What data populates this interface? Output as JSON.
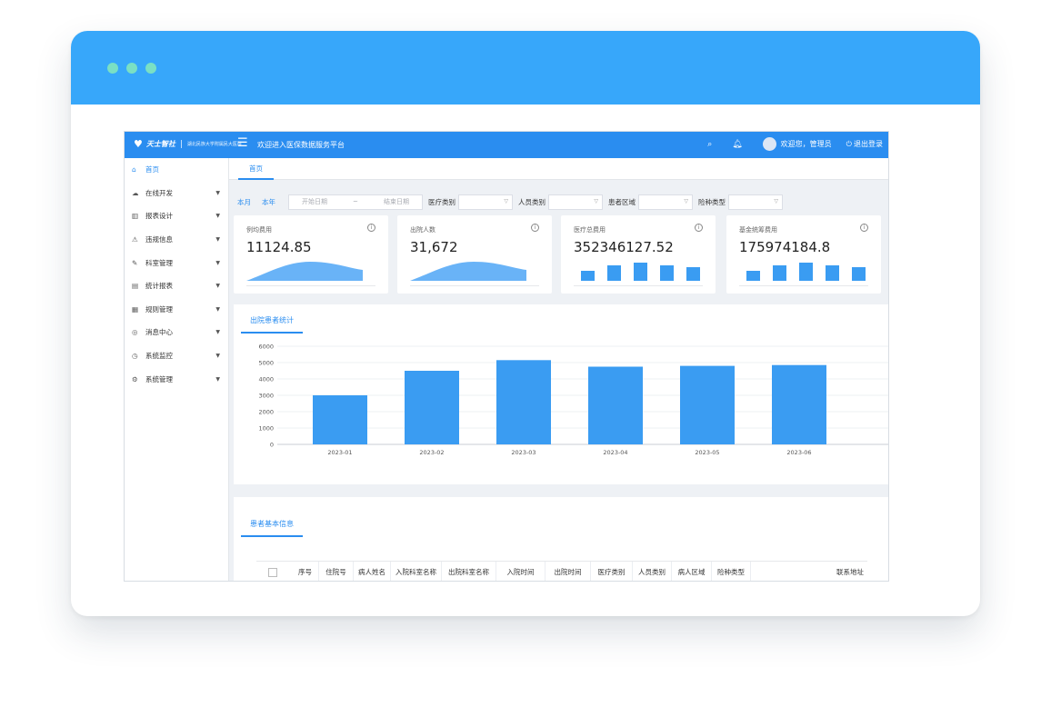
{
  "window": {
    "dots": [
      "close",
      "minimize",
      "maximize"
    ]
  },
  "header": {
    "logo_name": "天士智社",
    "logo_subtitle": "湖北民族大学附属民大医院",
    "menu_icon": "hamburger-icon",
    "title": "欢迎进入医保数据服务平台",
    "welcome": "欢迎您，管理员",
    "logout": "退出登录"
  },
  "sidebar": {
    "items": [
      {
        "label": "首页",
        "icon": "home-icon",
        "glyph": "⌂",
        "active": true,
        "has_arrow": false
      },
      {
        "label": "在线开发",
        "icon": "cloud-icon",
        "glyph": "☁",
        "active": false,
        "has_arrow": true
      },
      {
        "label": "报表设计",
        "icon": "bar-chart-icon",
        "glyph": "▥",
        "active": false,
        "has_arrow": true
      },
      {
        "label": "违规信息",
        "icon": "alert-icon",
        "glyph": "⚠",
        "active": false,
        "has_arrow": true
      },
      {
        "label": "科室管理",
        "icon": "edit-icon",
        "glyph": "✎",
        "active": false,
        "has_arrow": true
      },
      {
        "label": "统计报表",
        "icon": "stats-icon",
        "glyph": "▤",
        "active": false,
        "has_arrow": true
      },
      {
        "label": "规则管理",
        "icon": "rules-icon",
        "glyph": "▦",
        "active": false,
        "has_arrow": true
      },
      {
        "label": "消息中心",
        "icon": "message-icon",
        "glyph": "◎",
        "active": false,
        "has_arrow": true
      },
      {
        "label": "系统监控",
        "icon": "monitor-icon",
        "glyph": "◷",
        "active": false,
        "has_arrow": true
      },
      {
        "label": "系统管理",
        "icon": "gear-icon",
        "glyph": "⚙",
        "active": false,
        "has_arrow": true
      }
    ]
  },
  "tabs": [
    {
      "label": "首页"
    }
  ],
  "filters": {
    "this_month": "本月",
    "this_year": "本年",
    "start_placeholder": "开始日期",
    "range_sep": "~",
    "end_placeholder": "结束日期",
    "medical_type": "医疗类别",
    "person_type": "人员类别",
    "patient_region": "患者区域",
    "insurance_type": "险种类型"
  },
  "cards": [
    {
      "label": "例均费用",
      "value": "11124.85",
      "mini": "area"
    },
    {
      "label": "出院人数",
      "value": "31,672",
      "mini": "area"
    },
    {
      "label": "医疗总费用",
      "value": "352346127.52",
      "mini": "bars"
    },
    {
      "label": "基金统筹费用",
      "value": "175974184.8",
      "mini": "bars"
    }
  ],
  "discharge_panel": {
    "title": "出院患者统计"
  },
  "chart_data": {
    "type": "bar",
    "title": "",
    "categories": [
      "2023-01",
      "2023-02",
      "2023-03",
      "2023-04",
      "2023-05",
      "2023-06"
    ],
    "values": [
      3000,
      4500,
      5150,
      4750,
      4800,
      4850
    ],
    "ylim": [
      0,
      6000
    ],
    "yticks": [
      0,
      1000,
      2000,
      3000,
      4000,
      5000,
      6000
    ],
    "grid": true,
    "color": "#3a9cf2"
  },
  "patient_panel": {
    "title": "患者基本信息",
    "columns": [
      "序号",
      "住院号",
      "病人姓名",
      "入院科室名称",
      "出院科室名称",
      "入院时间",
      "出院时间",
      "医疗类别",
      "人员类别",
      "病人区域",
      "险种类型",
      "联系地址"
    ]
  },
  "colors": {
    "frame_bar": "#37a7fa",
    "accent": "#2a8df0",
    "dot": "#7ae0c4",
    "bar": "#3a9cf2"
  }
}
